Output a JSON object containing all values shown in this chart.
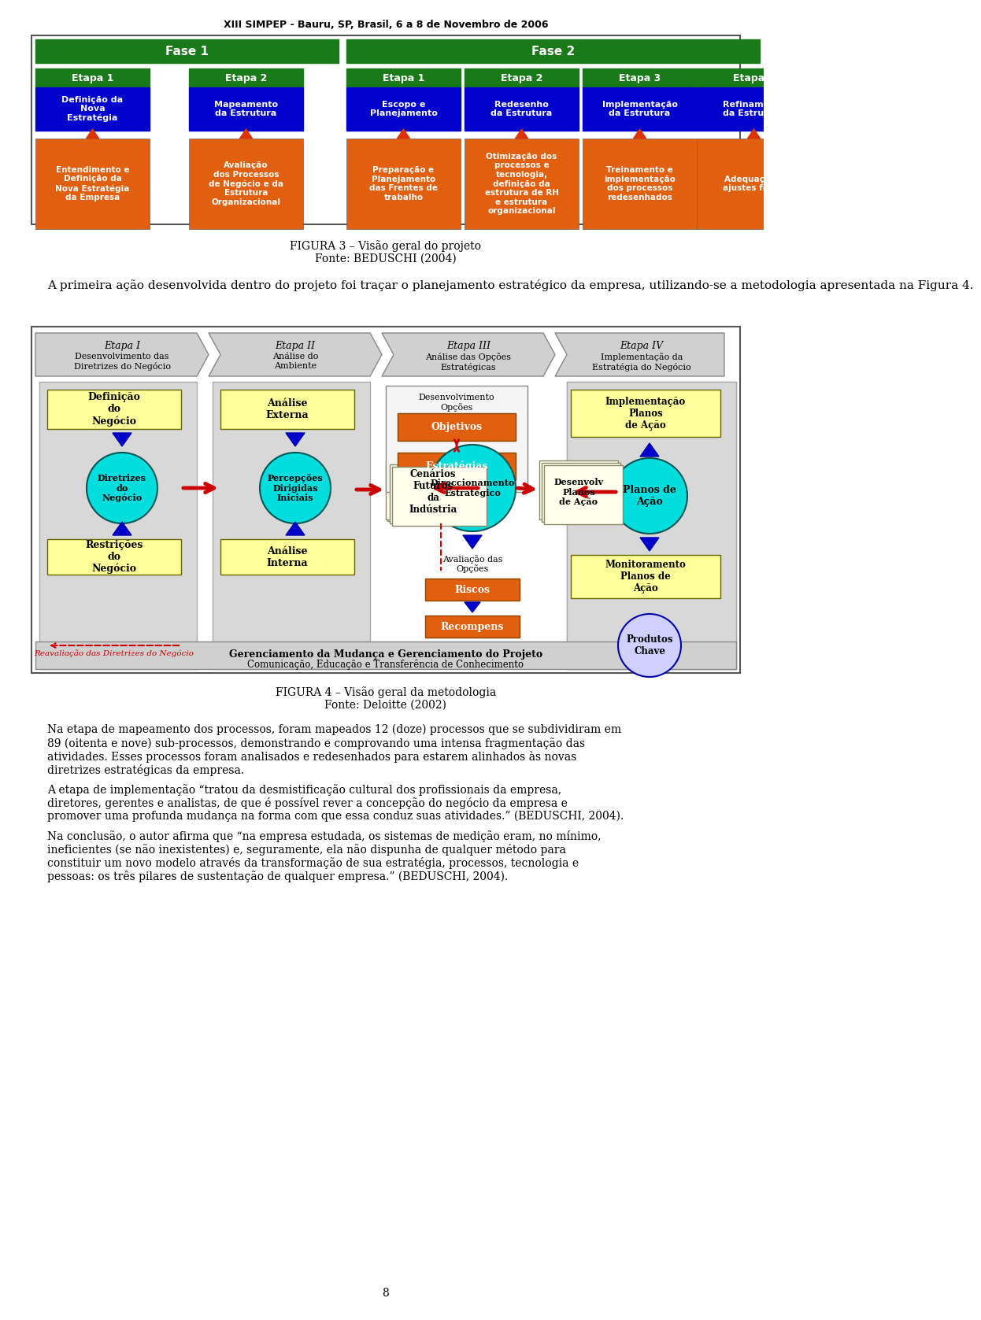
{
  "header_text": "XIII SIMPEP - Bauru, SP, Brasil, 6 a 8 de Novembro de 2006",
  "fig3_caption": "FIGURA 3 – Visão geral do projeto\nFonte: BEDUSCHI (2004)",
  "fig4_caption": "FIGURA 4 – Visão geral da metodologia\nFonte: Deloitte (2002)",
  "paragraph1": "A primeira ação desenvolvida dentro do projeto foi traçar o planejamento estratégico da empresa, utilizando-se a metodologia apresentada na Figura 4.",
  "paragraph2": "Na etapa de mapeamento dos processos, foram mapeados 12 (doze) processos que se subdividiram em 89 (oitenta e nove) sub-processos, demonstrando e comprovando uma intensa fragmentação das atividades. Esses processos foram analisados e redesenhados para estarem alinhados às novas diretrizes estratégicas da empresa.",
  "paragraph3": "A etapa de implementação “tratou da desmistificação cultural dos profissionais da empresa, diretores, gerentes e analistas, de que é possível rever a concepção do negócio da empresa e promover uma profunda mudança na forma com que essa conduz suas atividades.” (BEDUSCHI, 2004).",
  "paragraph4": "Na conclusão, o autor afirma que “na empresa estudada, os sistemas de medição eram, no mínimo, ineficientes (se não inexistentes) e, seguramente, ela não dispunha de qualquer método para constituir um novo modelo através da transformação de sua estratégia, processos, tecnologia e pessoas: os três pilares de sustentação de qualquer empresa.” (BEDUSCHI, 2004).",
  "page_number": "8",
  "green_color": "#1a7a1a",
  "blue_color": "#0000cc",
  "orange_color": "#e06010",
  "dark_border": "#333333",
  "gray_bg": "#c0c0c0",
  "cyan_color": "#00cccc",
  "yellow_color": "#ffff99",
  "red_arrow": "#cc0000",
  "blue_arrow": "#0000aa"
}
